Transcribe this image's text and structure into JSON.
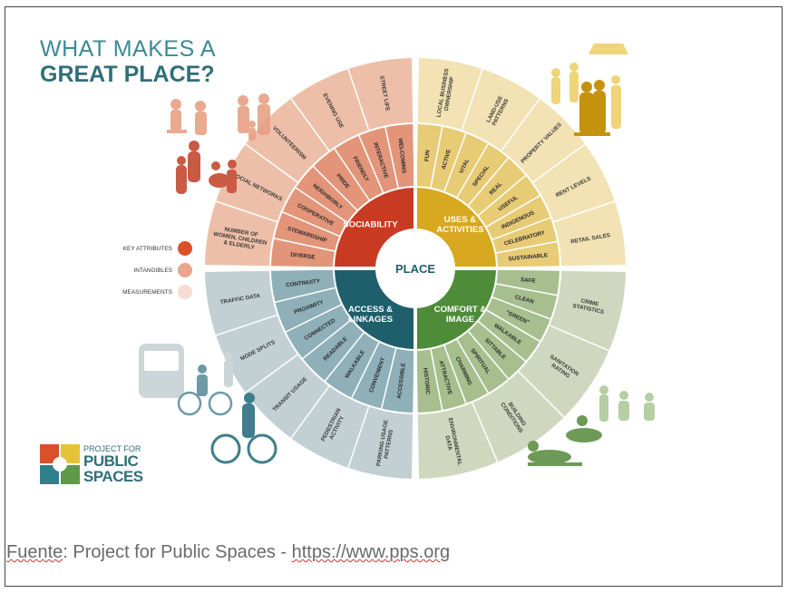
{
  "title": {
    "line1": "WHAT MAKES A",
    "line2": "GREAT PLACE?"
  },
  "legend": [
    {
      "label": "KEY ATTRIBUTES",
      "color": "#d9502a"
    },
    {
      "label": "INTANGIBLES",
      "color": "#e9a68f"
    },
    {
      "label": "MEASUREMENTS",
      "color": "#f6ddd3"
    }
  ],
  "center": "PLACE",
  "quadrants": [
    {
      "key": "sociability",
      "name": "SOCIABILITY",
      "colors": {
        "core": "#c93a22",
        "mid": "#e3957a",
        "outer": "#eebfa8"
      },
      "intangibles": [
        "DIVERSE",
        "STEWARDSHIP",
        "COOPERATIVE",
        "NEIGHBORLY",
        "PRIDE",
        "FRIENDLY",
        "INTERACTIVE",
        "WELCOMING"
      ],
      "measurements": [
        "NUMBER OF WOMEN, CHILDREN & ELDERLY",
        "SOCIAL NETWORKS",
        "VOLUNTEERISM",
        "EVENING USE",
        "STREET LIFE"
      ]
    },
    {
      "key": "uses",
      "name": "USES & ACTIVITIES",
      "colors": {
        "core": "#d9a821",
        "mid": "#e8cb75",
        "outer": "#f2e2b4"
      },
      "intangibles": [
        "FUN",
        "ACTIVE",
        "VITAL",
        "SPECIAL",
        "REAL",
        "USEFUL",
        "INDIGENOUS",
        "CELEBRATORY",
        "SUSTAINABLE"
      ],
      "measurements": [
        "LOCAL BUSINESS OWNERSHIP",
        "LAND-USE PATTERNS",
        "PROPERTY VALUES",
        "RENT LEVELS",
        "RETAIL SALES"
      ]
    },
    {
      "key": "comfort",
      "name": "COMFORT & IMAGE",
      "colors": {
        "core": "#4f8c3a",
        "mid": "#a7bf8f",
        "outer": "#cfd8bf"
      },
      "intangibles": [
        "SAFE",
        "CLEAN",
        "\"GREEN\"",
        "WALKABLE",
        "SITTABLE",
        "SPIRITUAL",
        "CHARMING",
        "ATTRACTIVE",
        "HISTORIC"
      ],
      "measurements": [
        "CRIME STATISTICS",
        "SANITATION RATING",
        "BUILDING CONDITIONS",
        "ENVIRONMENTAL DATA"
      ]
    },
    {
      "key": "access",
      "name": "ACCESS & LINKAGES",
      "colors": {
        "core": "#1f5f6c",
        "mid": "#8fb0b9",
        "outer": "#c2cfd3"
      },
      "intangibles": [
        "ACCESSIBLE",
        "CONVENIENT",
        "WALKABLE",
        "READABLE",
        "CONNECTED",
        "PROXIMITY",
        "CONTINUITY"
      ],
      "measurements": [
        "PARKING USAGE PATTERNS",
        "PEDESTRIAN ACTIVITY",
        "TRANSIT USAGE",
        "MODE SPLITS",
        "TRAFFIC DATA"
      ]
    }
  ],
  "logo": {
    "small": "PROJECT FOR",
    "big1": "PUBLIC",
    "big2": "SPACES",
    "colors": [
      "#d9502a",
      "#e6c23a",
      "#2f7f8c",
      "#5e9a48"
    ]
  },
  "caption": {
    "prefix": "Fuente",
    "rest": ": Project for Public Spaces - ",
    "url": "https://www.pps.org"
  }
}
